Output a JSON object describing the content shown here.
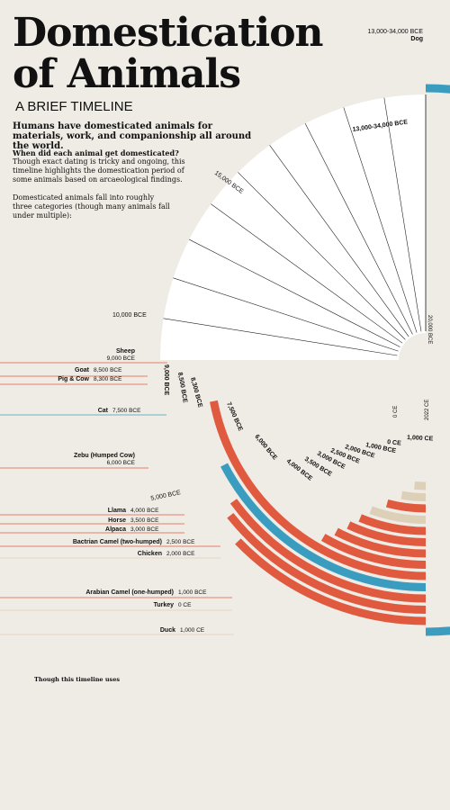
{
  "header": {
    "title_line1": "Domestication",
    "title_line2": "of Animals",
    "subtitle": "A BRIEF TIMELINE",
    "intro": "Humans have domesticated animals for materials, work, and companionship all around the world.",
    "question_heading": "When did each animal get domesticated?",
    "question_body": "Though exact dating is tricky and ongoing, this timeline highlights the domestication period of some animals based on arcaeological findings.",
    "categories_text": "Domesticated animals fall into roughly three categories (though many animals fall under multiple):"
  },
  "footnote": "Though this timeline uses",
  "colors": {
    "background": "#efebe5",
    "blue": "#3a9dbf",
    "red": "#e05a3f",
    "beige": "#dcd0b8",
    "text": "#111111"
  },
  "chart_data": {
    "type": "radial timeline",
    "axis_labels": [
      "15,000 BCE",
      "10,000 BCE",
      "5,000 BCE",
      "0 CE",
      "2022 CE",
      "20,000 BCE"
    ],
    "animals": [
      {
        "name": "Dog",
        "date": "13,000-34,000 BCE",
        "arc_label": "13,000-34,000 BCE",
        "start_year": -13000,
        "color": "blue"
      },
      {
        "name": "Sheep",
        "date": "9,000 BCE",
        "arc_label": "9,000 BCE",
        "start_year": -9000,
        "color": "red"
      },
      {
        "name": "Goat",
        "date": "8,500 BCE",
        "arc_label": "8,500 BCE",
        "start_year": -8500,
        "color": "red"
      },
      {
        "name": "Pig & Cow",
        "date": "8,300 BCE",
        "arc_label": "8,300 BCE",
        "start_year": -8300,
        "color": "red"
      },
      {
        "name": "Cat",
        "date": "7,500 BCE",
        "arc_label": "7,500 BCE",
        "start_year": -7500,
        "color": "blue"
      },
      {
        "name": "Zebu (Humped Cow)",
        "date": "6,000 BCE",
        "arc_label": "6,000 BCE",
        "start_year": -6000,
        "color": "red"
      },
      {
        "name": "Llama",
        "date": "4,000 BCE",
        "arc_label": "4,000 BCE",
        "start_year": -4000,
        "color": "red"
      },
      {
        "name": "Horse",
        "date": "3,500 BCE",
        "arc_label": "3,500 BCE",
        "start_year": -3500,
        "color": "red"
      },
      {
        "name": "Alpaca",
        "date": "3,000 BCE",
        "arc_label": "3,000 BCE",
        "start_year": -3000,
        "color": "red"
      },
      {
        "name": "Bactrian Camel (two-humped)",
        "date": "2,500 BCE",
        "arc_label": "2,500 BCE",
        "start_year": -2500,
        "color": "red"
      },
      {
        "name": "Chicken",
        "date": "2,000 BCE",
        "arc_label": "2,000 BCE",
        "start_year": -2000,
        "color": "beige"
      },
      {
        "name": "Arabian Camel (one-humped)",
        "date": "1,000 BCE",
        "arc_label": "1,000 BCE",
        "start_year": -1000,
        "color": "red"
      },
      {
        "name": "Turkey",
        "date": "0 CE",
        "arc_label": "0 CE",
        "start_year": 0,
        "color": "beige"
      },
      {
        "name": "Duck",
        "date": "1,000 CE",
        "arc_label": "1,000 CE",
        "start_year": 1000,
        "color": "beige"
      }
    ]
  }
}
